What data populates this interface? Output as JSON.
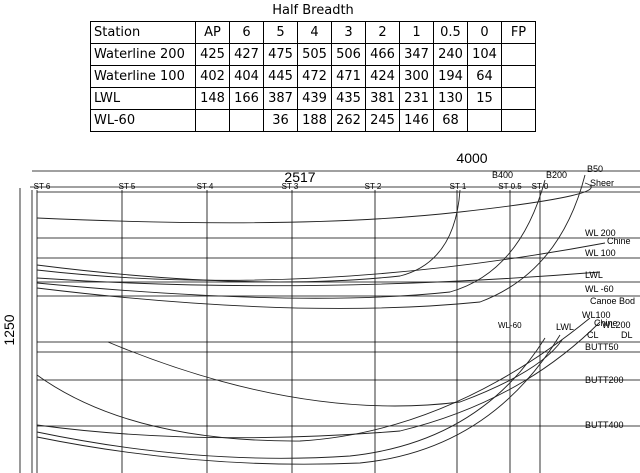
{
  "table": {
    "title": "Half Breadth",
    "header": [
      "Station",
      "AP",
      "6",
      "5",
      "4",
      "3",
      "2",
      "1",
      "0.5",
      "0",
      "FP"
    ],
    "rows": [
      [
        "Waterline 200",
        425,
        427,
        475,
        505,
        506,
        466,
        347,
        240,
        104,
        null
      ],
      [
        "Waterline 100",
        402,
        404,
        445,
        472,
        471,
        424,
        300,
        194,
        64,
        null
      ],
      [
        "LWL",
        148,
        166,
        387,
        439,
        435,
        381,
        231,
        130,
        15,
        null
      ],
      [
        "WL-60",
        null,
        null,
        36,
        188,
        262,
        245,
        146,
        68,
        null,
        null
      ]
    ]
  },
  "drawing": {
    "dimensions": [
      "4000",
      "2517",
      "1250"
    ],
    "stations": [
      "ST 6",
      "ST 5",
      "ST 4",
      "ST 3",
      "ST 2",
      "ST 1",
      "ST 0.5",
      "ST 0"
    ],
    "labels": [
      "B400",
      "B200",
      "B50",
      "Sheer",
      "WL 200",
      "Chine",
      "WL 100",
      "LWL",
      "WL -60",
      "Canoe Bod",
      "WL100",
      "Chine",
      "WL-60",
      "LWL",
      "WL200",
      "CL",
      "DL",
      "BUTT50",
      "BUTT200",
      "BUTT400"
    ]
  }
}
